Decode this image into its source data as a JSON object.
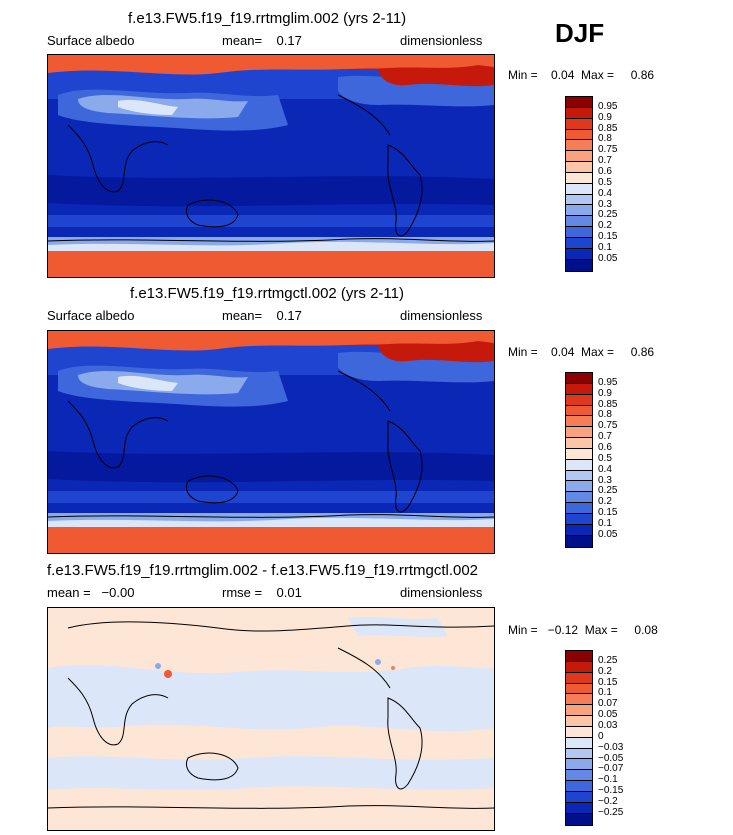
{
  "season": "DJF",
  "panels": [
    {
      "title": "f.e13.FW5.f19_f19.rrtmglim.002 (yrs 2-11)",
      "field": "Surface albedo",
      "stat": "mean=    0.17",
      "units": "dimensionless",
      "range": "Min =    0.04  Max =     0.86",
      "levels": [
        "0.95",
        "0.9",
        "0.85",
        "0.8",
        "0.75",
        "0.7",
        "0.6",
        "0.5",
        "0.4",
        "0.3",
        "0.25",
        "0.2",
        "0.15",
        "0.1",
        "0.05"
      ],
      "colors": [
        "#8b0000",
        "#c51a0b",
        "#e0381c",
        "#ef5a33",
        "#f57e58",
        "#f8a27f",
        "#fbc5a8",
        "#fde6d6",
        "#dbe6f8",
        "#b2c8f2",
        "#8aaaec",
        "#6489e4",
        "#3e67dc",
        "#1f45d0",
        "#0b27b6",
        "#000f8a"
      ]
    },
    {
      "title": "f.e13.FW5.f19_f19.rrtmgctl.002 (yrs 2-11)",
      "field": "Surface albedo",
      "stat": "mean=    0.17",
      "units": "dimensionless",
      "range": "Min =    0.04  Max =     0.86",
      "levels": [
        "0.95",
        "0.9",
        "0.85",
        "0.8",
        "0.75",
        "0.7",
        "0.6",
        "0.5",
        "0.4",
        "0.3",
        "0.25",
        "0.2",
        "0.15",
        "0.1",
        "0.05"
      ],
      "colors": [
        "#8b0000",
        "#c51a0b",
        "#e0381c",
        "#ef5a33",
        "#f57e58",
        "#f8a27f",
        "#fbc5a8",
        "#fde6d6",
        "#dbe6f8",
        "#b2c8f2",
        "#8aaaec",
        "#6489e4",
        "#3e67dc",
        "#1f45d0",
        "#0b27b6",
        "#000f8a"
      ]
    },
    {
      "title": "f.e13.FW5.f19_f19.rrtmglim.002 - f.e13.FW5.f19_f19.rrtmgctl.002",
      "field": "mean =   −0.00",
      "stat": "rmse =    0.01",
      "units": "dimensionless",
      "range": "Min =   −0.12  Max =     0.08",
      "levels": [
        "0.25",
        "0.2",
        "0.15",
        "0.1",
        "0.07",
        "0.05",
        "0.03",
        "0",
        "−0.03",
        "−0.05",
        "−0.07",
        "−0.1",
        "−0.15",
        "−0.2",
        "−0.25"
      ],
      "colors": [
        "#8b0000",
        "#c51a0b",
        "#e0381c",
        "#ef5a33",
        "#f57e58",
        "#f8a27f",
        "#fbc5a8",
        "#fde6d6",
        "#dbe6f8",
        "#b2c8f2",
        "#8aaaec",
        "#6489e4",
        "#3e67dc",
        "#1f45d0",
        "#0b27b6",
        "#000f8a"
      ]
    }
  ]
}
